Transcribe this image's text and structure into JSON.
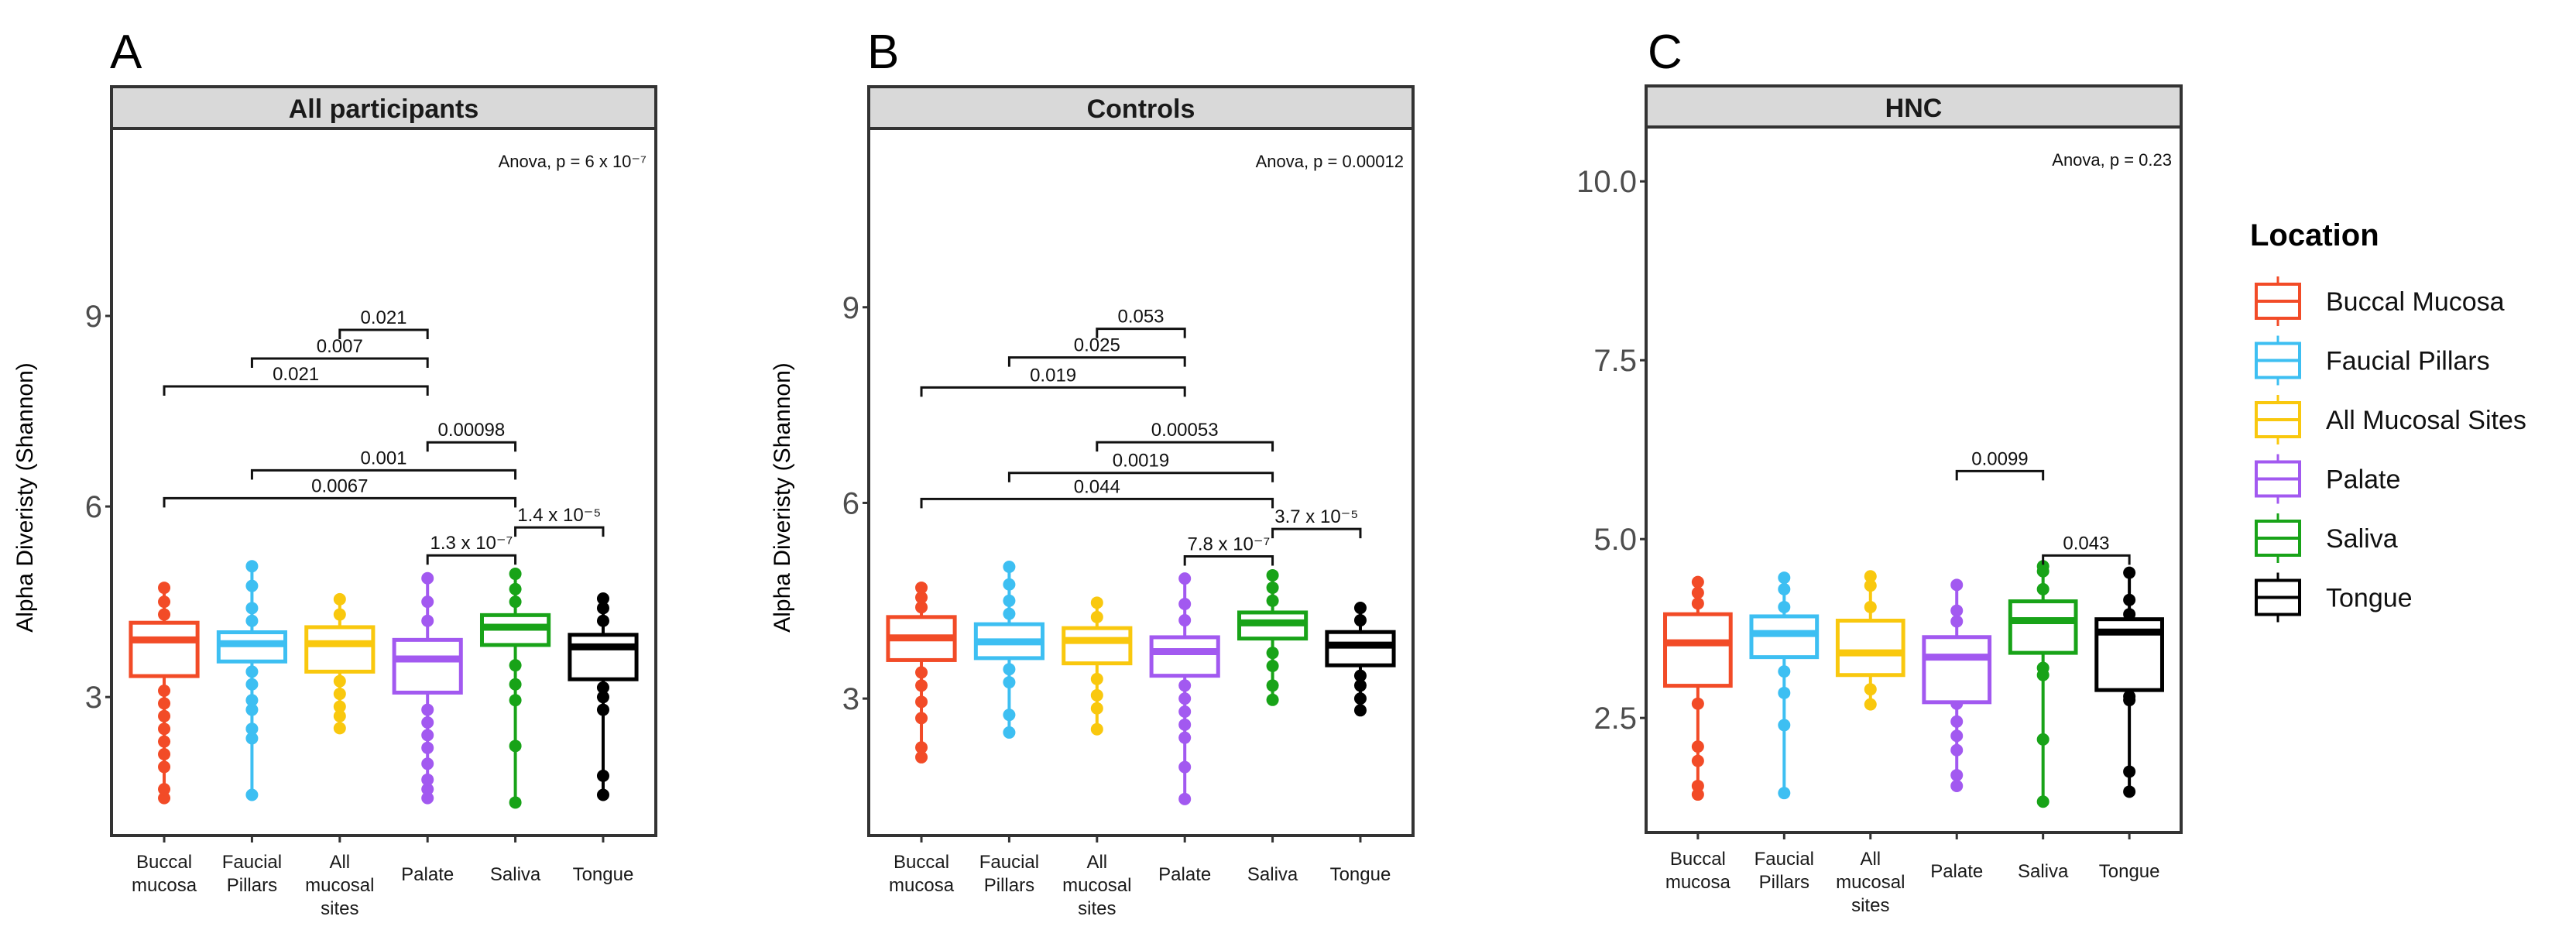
{
  "chart_data": [
    {
      "type": "box",
      "panel_letter": "A",
      "title": "All participants",
      "ylabel": "Alpha Diveristy (Shannon)",
      "ylim": [
        0.82,
        11.95
      ],
      "yticks": [
        3,
        6,
        9
      ],
      "ytick_labels": [
        "3",
        "6",
        "9"
      ],
      "annotation": "Anova, p = 6 x 10⁻⁷",
      "categories": [
        "Buccal mucosa",
        "Faucial Pillars",
        "All mucosal sites",
        "Palate",
        "Saliva",
        "Tongue"
      ],
      "category_lines": [
        [
          "Buccal",
          "mucosa"
        ],
        [
          "Faucial",
          "Pillars"
        ],
        [
          "All",
          "mucosal",
          "sites"
        ],
        [
          "Palate"
        ],
        [
          "Saliva"
        ],
        [
          "Tongue"
        ]
      ],
      "boxes": [
        {
          "q1": 3.33,
          "median": 3.9,
          "q3": 4.17,
          "min": 1.41,
          "max": 4.72,
          "points": [
            1.41,
            1.55,
            1.9,
            2.1,
            2.3,
            2.5,
            2.7,
            2.9,
            3.1,
            4.3,
            4.5,
            4.72
          ]
        },
        {
          "q1": 3.56,
          "median": 3.84,
          "q3": 4.02,
          "min": 1.46,
          "max": 5.06,
          "points": [
            1.46,
            2.35,
            2.5,
            2.8,
            2.95,
            3.2,
            3.4,
            4.2,
            4.4,
            4.75,
            5.06
          ]
        },
        {
          "q1": 3.4,
          "median": 3.84,
          "q3": 4.1,
          "min": 2.51,
          "max": 4.54,
          "points": [
            2.51,
            2.7,
            2.85,
            3.05,
            3.25,
            4.3,
            4.54
          ]
        },
        {
          "q1": 3.07,
          "median": 3.6,
          "q3": 3.9,
          "min": 1.41,
          "max": 4.87,
          "points": [
            1.41,
            1.55,
            1.7,
            1.95,
            2.2,
            2.4,
            2.6,
            2.8,
            4.2,
            4.5,
            4.87
          ]
        },
        {
          "q1": 3.82,
          "median": 4.1,
          "q3": 4.29,
          "min": 1.34,
          "max": 4.94,
          "points": [
            1.34,
            2.23,
            2.95,
            3.2,
            3.5,
            4.5,
            4.7,
            4.94
          ]
        },
        {
          "q1": 3.28,
          "median": 3.79,
          "q3": 3.98,
          "min": 1.46,
          "max": 4.55,
          "points": [
            1.46,
            1.76,
            2.8,
            3.0,
            3.15,
            4.2,
            4.4,
            4.55
          ]
        }
      ],
      "comparisons": [
        {
          "from": 4,
          "to": 3,
          "y": 8.78,
          "label": "0.021"
        },
        {
          "from": 2,
          "to": 4,
          "y": 8.33,
          "label": "0.007"
        },
        {
          "from": 1,
          "to": 4,
          "y": 7.89,
          "label": "0.021"
        },
        {
          "from": 4,
          "to": 5,
          "y": 7.01,
          "label": "0.00098"
        },
        {
          "from": 2,
          "to": 5,
          "y": 6.57,
          "label": "0.001"
        },
        {
          "from": 1,
          "to": 5,
          "y": 6.13,
          "label": "0.0067"
        },
        {
          "from": 5,
          "to": 6,
          "y": 5.67,
          "label": "1.4 x 10⁻⁵"
        },
        {
          "from": 4,
          "to": 5,
          "y": 5.23,
          "label": "1.3 x 10⁻⁷"
        }
      ]
    },
    {
      "type": "box",
      "panel_letter": "B",
      "title": "Controls",
      "ylabel": "Alpha Diveristy (Shannon)",
      "ylim": [
        0.9,
        11.74
      ],
      "yticks": [
        3,
        6,
        9
      ],
      "ytick_labels": [
        "3",
        "6",
        "9"
      ],
      "annotation": "Anova, p = 0.00012",
      "categories": [
        "Buccal mucosa",
        "Faucial Pillars",
        "All mucosal sites",
        "Palate",
        "Saliva",
        "Tongue"
      ],
      "category_lines": [
        [
          "Buccal",
          "mucosa"
        ],
        [
          "Faucial",
          "Pillars"
        ],
        [
          "All",
          "mucosal",
          "sites"
        ],
        [
          "Palate"
        ],
        [
          "Saliva"
        ],
        [
          "Tongue"
        ]
      ],
      "boxes": [
        {
          "q1": 3.59,
          "median": 3.93,
          "q3": 4.25,
          "min": 2.1,
          "max": 4.7,
          "points": [
            2.1,
            2.25,
            2.7,
            2.95,
            3.2,
            3.4,
            4.4,
            4.55,
            4.7
          ]
        },
        {
          "q1": 3.62,
          "median": 3.87,
          "q3": 4.14,
          "min": 2.48,
          "max": 5.02,
          "points": [
            2.48,
            2.75,
            3.25,
            3.45,
            4.3,
            4.5,
            4.75,
            5.02
          ]
        },
        {
          "q1": 3.54,
          "median": 3.89,
          "q3": 4.08,
          "min": 2.53,
          "max": 4.47,
          "points": [
            2.53,
            2.85,
            3.05,
            3.3,
            4.25,
            4.47
          ]
        },
        {
          "q1": 3.35,
          "median": 3.72,
          "q3": 3.94,
          "min": 1.46,
          "max": 4.84,
          "points": [
            1.46,
            1.95,
            2.4,
            2.6,
            2.8,
            3.0,
            3.2,
            4.2,
            4.45,
            4.84
          ]
        },
        {
          "q1": 3.92,
          "median": 4.16,
          "q3": 4.32,
          "min": 2.98,
          "max": 4.89,
          "points": [
            2.98,
            3.2,
            3.5,
            3.7,
            4.5,
            4.7,
            4.89
          ]
        },
        {
          "q1": 3.51,
          "median": 3.82,
          "q3": 4.02,
          "min": 2.82,
          "max": 4.39,
          "points": [
            2.82,
            3.0,
            3.2,
            3.35,
            4.2,
            4.39
          ]
        }
      ],
      "comparisons": [
        {
          "from": 3,
          "to": 4,
          "y": 8.67,
          "label": "0.053"
        },
        {
          "from": 2,
          "to": 4,
          "y": 8.23,
          "label": "0.025"
        },
        {
          "from": 1,
          "to": 4,
          "y": 7.77,
          "label": "0.019"
        },
        {
          "from": 3,
          "to": 5,
          "y": 6.93,
          "label": "0.00053"
        },
        {
          "from": 2,
          "to": 5,
          "y": 6.46,
          "label": "0.0019"
        },
        {
          "from": 1,
          "to": 5,
          "y": 6.06,
          "label": "0.044"
        },
        {
          "from": 5,
          "to": 6,
          "y": 5.6,
          "label": "3.7 x 10⁻⁵"
        },
        {
          "from": 4,
          "to": 5,
          "y": 5.18,
          "label": "7.8 x 10⁻⁷"
        }
      ]
    },
    {
      "type": "box",
      "panel_letter": "C",
      "title": "HNC",
      "ylabel": "",
      "ylim": [
        0.9,
        10.76
      ],
      "yticks": [
        2.5,
        5.0,
        7.5,
        10.0
      ],
      "ytick_labels": [
        "2.5",
        "5.0",
        "7.5",
        "10.0"
      ],
      "annotation": "Anova, p = 0.23",
      "categories": [
        "Buccal mucosa",
        "Faucial Pillars",
        "All mucosal sites",
        "Palate",
        "Saliva",
        "Tongue"
      ],
      "category_lines": [
        [
          "Buccal",
          "mucosa"
        ],
        [
          "Faucial",
          "Pillars"
        ],
        [
          "All",
          "mucosal",
          "sites"
        ],
        [
          "Palate"
        ],
        [
          "Saliva"
        ],
        [
          "Tongue"
        ]
      ],
      "boxes": [
        {
          "q1": 2.95,
          "median": 3.55,
          "q3": 3.95,
          "min": 1.43,
          "max": 4.4,
          "points": [
            1.43,
            1.55,
            1.9,
            2.1,
            2.7,
            4.1,
            4.25,
            4.4
          ]
        },
        {
          "q1": 3.35,
          "median": 3.68,
          "q3": 3.92,
          "min": 1.45,
          "max": 4.46,
          "points": [
            1.45,
            2.4,
            2.85,
            3.15,
            4.05,
            4.3,
            4.46
          ]
        },
        {
          "q1": 3.1,
          "median": 3.41,
          "q3": 3.86,
          "min": 2.69,
          "max": 4.48,
          "points": [
            2.69,
            2.9,
            4.05,
            4.35,
            4.48
          ]
        },
        {
          "q1": 2.72,
          "median": 3.35,
          "q3": 3.63,
          "min": 1.55,
          "max": 4.36,
          "points": [
            1.55,
            1.7,
            2.05,
            2.25,
            2.45,
            2.7,
            3.85,
            4.0,
            4.36
          ]
        },
        {
          "q1": 3.41,
          "median": 3.86,
          "q3": 4.13,
          "min": 1.33,
          "max": 4.62,
          "points": [
            1.33,
            2.2,
            3.1,
            3.2,
            4.3,
            4.55,
            4.62
          ]
        },
        {
          "q1": 2.89,
          "median": 3.7,
          "q3": 3.88,
          "min": 1.47,
          "max": 4.53,
          "points": [
            1.47,
            1.75,
            2.75,
            2.8,
            3.95,
            4.15,
            4.53
          ]
        }
      ],
      "comparisons": [
        {
          "from": 4,
          "to": 5,
          "y": 5.95,
          "label": "0.0099"
        },
        {
          "from": 5,
          "to": 6,
          "y": 4.77,
          "label": "0.043"
        }
      ]
    }
  ],
  "legend": {
    "title": "Location",
    "placement": "right",
    "items": [
      {
        "label": "Buccal Mucosa",
        "color": "#F24B27"
      },
      {
        "label": "Faucial Pillars",
        "color": "#3DBFF2"
      },
      {
        "label": "All Mucosal Sites",
        "color": "#F9C80E"
      },
      {
        "label": "Palate",
        "color": "#A259F0"
      },
      {
        "label": "Saliva",
        "color": "#18A318"
      },
      {
        "label": "Tongue",
        "color": "#000000"
      }
    ]
  }
}
